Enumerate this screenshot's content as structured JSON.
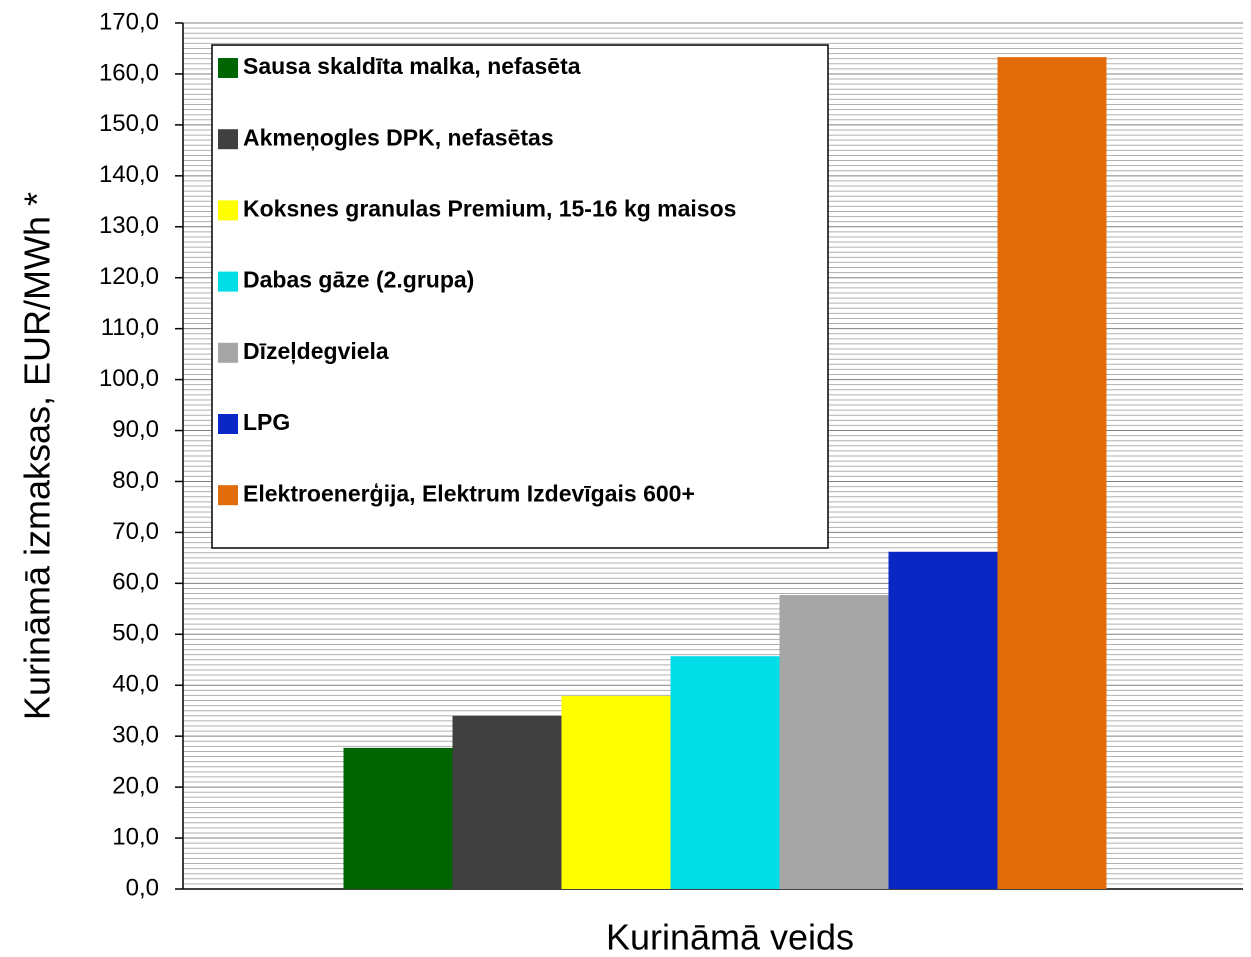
{
  "chart_data": {
    "type": "bar",
    "categories": [
      null
    ],
    "series": [
      {
        "name": "Sausa skaldīta malka, nefasēta",
        "color": "#006400",
        "values": [
          27.7
        ]
      },
      {
        "name": "Akmeņogles DPK, nefasētas",
        "color": "#404040",
        "values": [
          34.0
        ]
      },
      {
        "name": "Koksnes granulas Premium, 15-16 kg maisos",
        "color": "#ffff00",
        "values": [
          37.9
        ]
      },
      {
        "name": "Dabas gāze (2.grupa)",
        "color": "#00dde6",
        "values": [
          45.7
        ]
      },
      {
        "name": "Dīzeļdegviela",
        "color": "#a6a6a6",
        "values": [
          57.7
        ]
      },
      {
        "name": "LPG",
        "color": "#0a26c4",
        "values": [
          66.2
        ]
      },
      {
        "name": "Elektroenerģija, Elektrum Izdevīgais 600+",
        "color": "#e36c0a",
        "values": [
          163.3
        ]
      }
    ],
    "y_label": "Kurināmā izmaksas, EUR/MWh *",
    "x_label": "Kurināmā veids",
    "ylim": [
      0,
      170
    ],
    "yticks": [
      {
        "value": 0,
        "label": "0,0"
      },
      {
        "value": 10,
        "label": "10,0"
      },
      {
        "value": 20,
        "label": "20,0"
      },
      {
        "value": 30,
        "label": "30,0"
      },
      {
        "value": 40,
        "label": "40,0"
      },
      {
        "value": 50,
        "label": "50,0"
      },
      {
        "value": 60,
        "label": "60,0"
      },
      {
        "value": 70,
        "label": "70,0"
      },
      {
        "value": 80,
        "label": "80,0"
      },
      {
        "value": 90,
        "label": "90,0"
      },
      {
        "value": 100,
        "label": "100,0"
      },
      {
        "value": 110,
        "label": "110,0"
      },
      {
        "value": 120,
        "label": "120,0"
      },
      {
        "value": 130,
        "label": "130,0"
      },
      {
        "value": 140,
        "label": "140,0"
      },
      {
        "value": 150,
        "label": "150,0"
      },
      {
        "value": 160,
        "label": "160,0"
      },
      {
        "value": 170,
        "label": "170,0"
      }
    ],
    "grid": true,
    "minor_grid": true,
    "legend": "upper left"
  }
}
